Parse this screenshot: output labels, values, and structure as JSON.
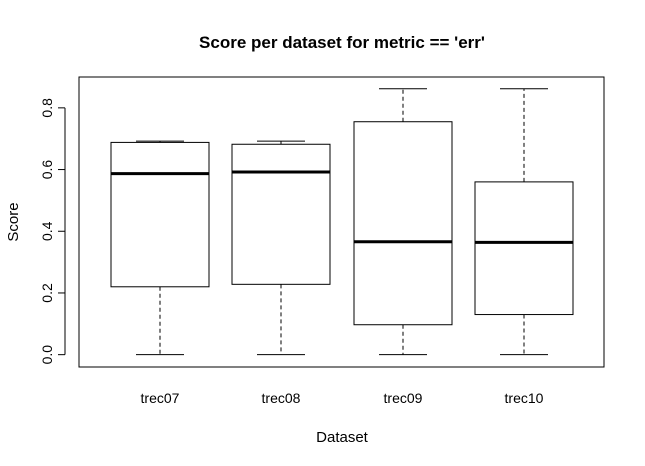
{
  "chart_data": {
    "type": "boxplot",
    "title": "Score per dataset for metric == 'err'",
    "xlabel": "Dataset",
    "ylabel": "Score",
    "ylim": [
      -0.04,
      0.9
    ],
    "yticks": [
      "0.0",
      "0.2",
      "0.4",
      "0.6",
      "0.8"
    ],
    "ytick_values": [
      0.0,
      0.2,
      0.4,
      0.6,
      0.8
    ],
    "categories": [
      "trec07",
      "trec08",
      "trec09",
      "trec10"
    ],
    "boxes": [
      {
        "category": "trec07",
        "min": 0.0,
        "q1": 0.22,
        "median": 0.587,
        "q3": 0.688,
        "max": 0.692
      },
      {
        "category": "trec08",
        "min": 0.0,
        "q1": 0.228,
        "median": 0.592,
        "q3": 0.682,
        "max": 0.692
      },
      {
        "category": "trec09",
        "min": 0.0,
        "q1": 0.097,
        "median": 0.366,
        "q3": 0.755,
        "max": 0.862
      },
      {
        "category": "trec10",
        "min": 0.0,
        "q1": 0.13,
        "median": 0.364,
        "q3": 0.56,
        "max": 0.862
      }
    ]
  }
}
